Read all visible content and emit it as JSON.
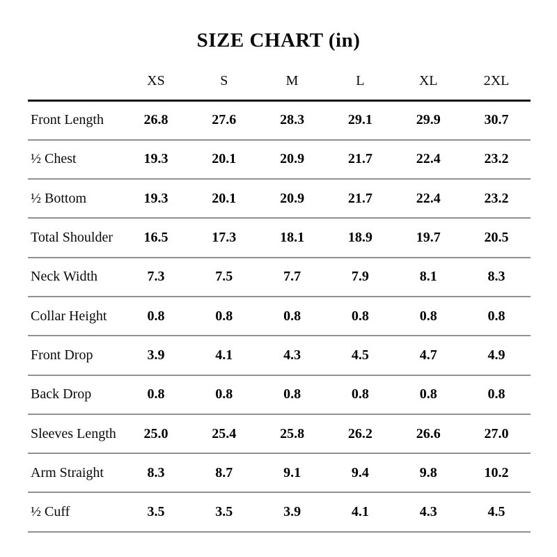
{
  "page": {
    "title": "SIZE CHART (in)"
  },
  "colors": {
    "background": "#ffffff",
    "text": "#0a0a0a",
    "header_rule": "#111111",
    "row_divider": "#909090"
  },
  "chart_data": {
    "type": "table",
    "title": "SIZE CHART (in)",
    "unit": "in",
    "columns": [
      "XS",
      "S",
      "M",
      "L",
      "XL",
      "2XL"
    ],
    "rows": [
      {
        "label": "Front Length",
        "values": [
          "26.8",
          "27.6",
          "28.3",
          "29.1",
          "29.9",
          "30.7"
        ]
      },
      {
        "label": "½ Chest",
        "values": [
          "19.3",
          "20.1",
          "20.9",
          "21.7",
          "22.4",
          "23.2"
        ]
      },
      {
        "label": "½ Bottom",
        "values": [
          "19.3",
          "20.1",
          "20.9",
          "21.7",
          "22.4",
          "23.2"
        ]
      },
      {
        "label": "Total Shoulder",
        "values": [
          "16.5",
          "17.3",
          "18.1",
          "18.9",
          "19.7",
          "20.5"
        ]
      },
      {
        "label": "Neck Width",
        "values": [
          "7.3",
          "7.5",
          "7.7",
          "7.9",
          "8.1",
          "8.3"
        ]
      },
      {
        "label": "Collar Height",
        "values": [
          "0.8",
          "0.8",
          "0.8",
          "0.8",
          "0.8",
          "0.8"
        ]
      },
      {
        "label": "Front Drop",
        "values": [
          "3.9",
          "4.1",
          "4.3",
          "4.5",
          "4.7",
          "4.9"
        ]
      },
      {
        "label": "Back Drop",
        "values": [
          "0.8",
          "0.8",
          "0.8",
          "0.8",
          "0.8",
          "0.8"
        ]
      },
      {
        "label": "Sleeves Length",
        "values": [
          "25.0",
          "25.4",
          "25.8",
          "26.2",
          "26.6",
          "27.0"
        ]
      },
      {
        "label": "Arm Straight",
        "values": [
          "8.3",
          "8.7",
          "9.1",
          "9.4",
          "9.8",
          "10.2"
        ]
      },
      {
        "label": "½ Cuff",
        "values": [
          "3.5",
          "3.5",
          "3.9",
          "4.1",
          "4.3",
          "4.5"
        ]
      }
    ]
  }
}
